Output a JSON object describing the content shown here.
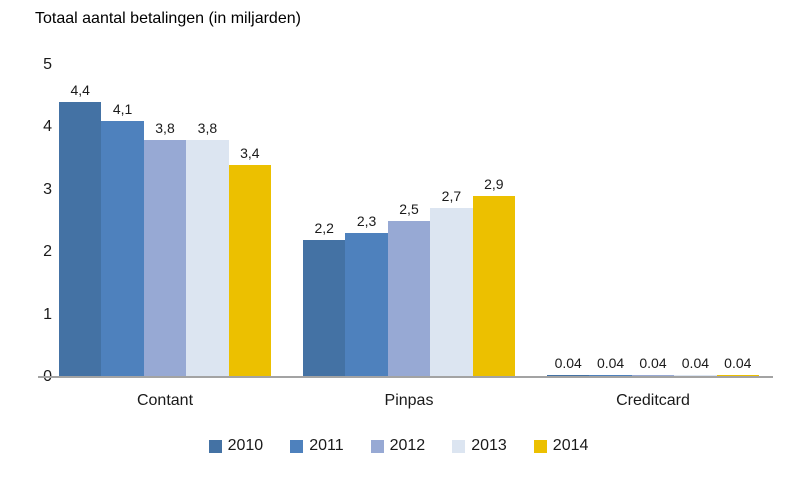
{
  "chart_data": {
    "type": "bar",
    "title": "Totaal aantal betalingen (in miljarden)",
    "categories": [
      "Contant",
      "Pinpas",
      "Creditcard"
    ],
    "series": [
      {
        "name": "2010",
        "color": "#4472A4",
        "values": [
          4.4,
          2.2,
          0.04
        ],
        "labels": [
          "4,4",
          "2,2",
          "0.04"
        ]
      },
      {
        "name": "2011",
        "color": "#4E81BD",
        "values": [
          4.1,
          2.3,
          0.04
        ],
        "labels": [
          "4,1",
          "2,3",
          "0.04"
        ]
      },
      {
        "name": "2012",
        "color": "#97A9D4",
        "values": [
          3.8,
          2.5,
          0.04
        ],
        "labels": [
          "3,8",
          "2,5",
          "0.04"
        ]
      },
      {
        "name": "2013",
        "color": "#DCE5F1",
        "values": [
          3.8,
          2.7,
          0.04
        ],
        "labels": [
          "3,8",
          "2,7",
          "0.04"
        ]
      },
      {
        "name": "2014",
        "color": "#ECC000",
        "values": [
          3.4,
          2.9,
          0.04
        ],
        "labels": [
          "3,4",
          "2,9",
          "0.04"
        ]
      }
    ],
    "y_axis": {
      "min": 0,
      "max": 5,
      "ticks": [
        0,
        1,
        2,
        3,
        4,
        5
      ]
    },
    "legend": {
      "position": "bottom",
      "entries": [
        "2010",
        "2011",
        "2012",
        "2013",
        "2014"
      ]
    },
    "grid": false,
    "axis_line_color": "#A3A3A3",
    "background": "#FFFFFF"
  }
}
